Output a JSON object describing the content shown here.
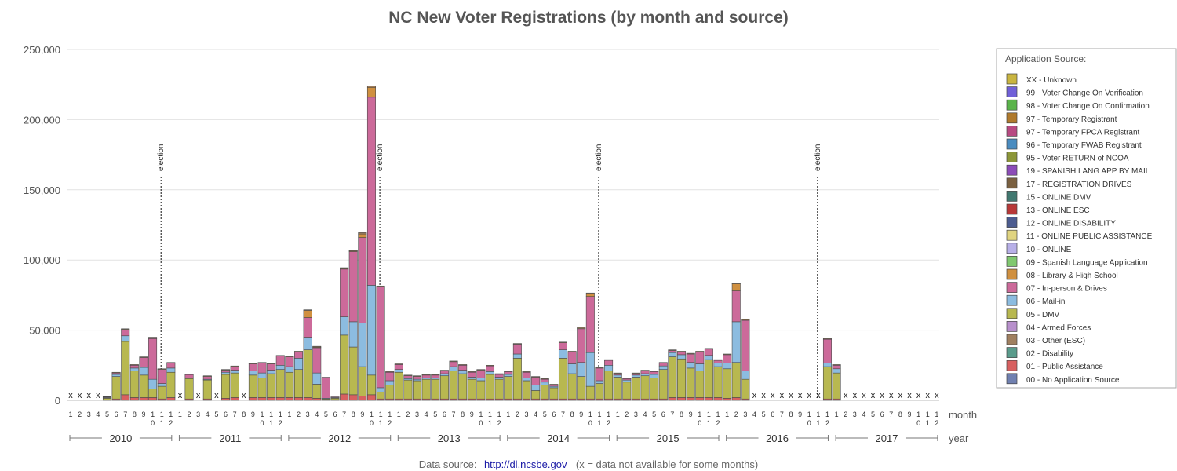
{
  "chart_data": {
    "type": "bar",
    "stacked": true,
    "title": "NC New Voter Registrations (by month and source)",
    "ylim": [
      0,
      250000
    ],
    "y_ticks": [
      "0",
      "50,000",
      "100,000",
      "150,000",
      "200,000",
      "250,000"
    ],
    "y_tick_values": [
      0,
      50000,
      100000,
      150000,
      200000,
      250000
    ],
    "x_axis_label": "month",
    "year_axis_label": "year",
    "years": [
      "2010",
      "2011",
      "2012",
      "2013",
      "2014",
      "2015",
      "2016",
      "2017"
    ],
    "month_labels": [
      [
        "1"
      ],
      [
        "2"
      ],
      [
        "3"
      ],
      [
        "4"
      ],
      [
        "5"
      ],
      [
        "6"
      ],
      [
        "7"
      ],
      [
        "8"
      ],
      [
        "9"
      ],
      [
        "1",
        "0"
      ],
      [
        "1",
        "1"
      ],
      [
        "1",
        "2"
      ]
    ],
    "unavailable_marker": "x",
    "election_label": "election",
    "election_months": [
      [
        "2010",
        11
      ],
      [
        "2012",
        11
      ],
      [
        "2014",
        11
      ],
      [
        "2016",
        11
      ]
    ],
    "legend": {
      "title": "Application Source:",
      "placement": "right",
      "entries": [
        {
          "name": "XX - Unknown",
          "color": "#c9b540"
        },
        {
          "name": "99 - Voter Change On Verification",
          "color": "#7060d8"
        },
        {
          "name": "98 - Voter Change On Confirmation",
          "color": "#5ab44a"
        },
        {
          "name": "97 - Temporary Registrant",
          "color": "#b07a2c"
        },
        {
          "name": "97 - Temporary FPCA Registrant",
          "color": "#b84a82"
        },
        {
          "name": "96 - Temporary FWAB Registrant",
          "color": "#4a8cc0"
        },
        {
          "name": "95 - Voter RETURN of NCOA",
          "color": "#8c9638"
        },
        {
          "name": "19 - SPANISH LANG APP BY MAIL",
          "color": "#8c4cb8"
        },
        {
          "name": "17 - REGISTRATION DRIVES",
          "color": "#7a6040"
        },
        {
          "name": "15 - ONLINE DMV",
          "color": "#407870"
        },
        {
          "name": "13 - ONLINE ESC",
          "color": "#b83838"
        },
        {
          "name": "12 - ONLINE DISABILITY",
          "color": "#4c5c90"
        },
        {
          "name": "11 - ONLINE PUBLIC ASSISTANCE",
          "color": "#e0d480"
        },
        {
          "name": "10 - ONLINE",
          "color": "#b8b0e8"
        },
        {
          "name": "09 - Spanish Language Application",
          "color": "#80c870"
        },
        {
          "name": "08 - Library & High School",
          "color": "#d09040"
        },
        {
          "name": "07 - In-person & Drives",
          "color": "#cc6a9a"
        },
        {
          "name": "06 - Mail-in",
          "color": "#8cbce0"
        },
        {
          "name": "05 - DMV",
          "color": "#b8b850"
        },
        {
          "name": "04 - Armed Forces",
          "color": "#b890cc"
        },
        {
          "name": "03 - Other (ESC)",
          "color": "#a08060"
        },
        {
          "name": "02 - Disability",
          "color": "#5a9c8c"
        },
        {
          "name": "01 - Public Assistance",
          "color": "#d86060"
        },
        {
          "name": "00 - No Application Source",
          "color": "#7080b0"
        }
      ]
    },
    "month_series_order": [
      "01 - Public Assistance",
      "05 - DMV",
      "06 - Mail-in",
      "07 - In-person & Drives",
      "08 - Library & High School",
      "03 - Other (ESC)"
    ],
    "months": [
      [
        "2010",
        1,
        null
      ],
      [
        "2010",
        2,
        null
      ],
      [
        "2010",
        3,
        null
      ],
      [
        "2010",
        4,
        null
      ],
      [
        "2010",
        5,
        [
          0,
          1500,
          500,
          500,
          0,
          100
        ]
      ],
      [
        "2010",
        6,
        [
          1000,
          16000,
          1500,
          1000,
          0,
          500
        ]
      ],
      [
        "2010",
        7,
        [
          4000,
          38000,
          4000,
          4500,
          0,
          500
        ]
      ],
      [
        "2010",
        8,
        [
          2000,
          19000,
          2000,
          2000,
          0,
          500
        ]
      ],
      [
        "2010",
        9,
        [
          2000,
          16000,
          5500,
          7000,
          0,
          500
        ]
      ],
      [
        "2010",
        10,
        [
          2000,
          6000,
          7000,
          29000,
          500,
          500
        ]
      ],
      [
        "2010",
        11,
        [
          1000,
          9000,
          2000,
          10000,
          0,
          500
        ]
      ],
      [
        "2010",
        12,
        [
          2000,
          18000,
          3000,
          3500,
          0,
          500
        ]
      ],
      [
        "2011",
        1,
        null
      ],
      [
        "2011",
        2,
        [
          1000,
          14500,
          500,
          2500,
          0,
          100
        ]
      ],
      [
        "2011",
        3,
        null
      ],
      [
        "2011",
        4,
        [
          1000,
          13500,
          500,
          2000,
          0,
          500
        ]
      ],
      [
        "2011",
        5,
        null
      ],
      [
        "2011",
        6,
        [
          1500,
          17000,
          1500,
          1500,
          0,
          500
        ]
      ],
      [
        "2011",
        7,
        [
          2000,
          17500,
          2000,
          2500,
          0,
          500
        ]
      ],
      [
        "2011",
        8,
        null
      ],
      [
        "2011",
        9,
        [
          2000,
          16000,
          3000,
          5000,
          0,
          500
        ]
      ],
      [
        "2011",
        10,
        [
          2000,
          14000,
          3500,
          7000,
          0,
          500
        ]
      ],
      [
        "2011",
        11,
        [
          2000,
          17000,
          2500,
          4500,
          0,
          500
        ]
      ],
      [
        "2011",
        12,
        [
          2000,
          20000,
          3000,
          6500,
          0,
          500
        ]
      ],
      [
        "2012",
        1,
        [
          2000,
          18000,
          4000,
          7000,
          0,
          500
        ]
      ],
      [
        "2012",
        2,
        [
          2000,
          20000,
          8000,
          4500,
          0,
          500
        ]
      ],
      [
        "2012",
        3,
        [
          2000,
          34000,
          9000,
          14000,
          5000,
          500
        ]
      ],
      [
        "2012",
        4,
        [
          1500,
          10000,
          8000,
          18000,
          500,
          500
        ]
      ],
      [
        "2012",
        5,
        [
          500,
          500,
          500,
          15000,
          0,
          0
        ]
      ],
      [
        "2012",
        6,
        [
          500,
          1000,
          500,
          500,
          0,
          0
        ]
      ],
      [
        "2012",
        7,
        [
          4500,
          42000,
          13000,
          34000,
          500,
          500
        ]
      ],
      [
        "2012",
        8,
        [
          4000,
          34000,
          18000,
          50000,
          500,
          500
        ]
      ],
      [
        "2012",
        9,
        [
          3000,
          21000,
          31000,
          61000,
          2500,
          1000
        ]
      ],
      [
        "2012",
        10,
        [
          4000,
          14000,
          64000,
          134000,
          7000,
          1000
        ]
      ],
      [
        "2012",
        11,
        [
          1000,
          5000,
          3000,
          72000,
          0,
          500
        ]
      ],
      [
        "2012",
        12,
        [
          1000,
          10000,
          3000,
          6000,
          0,
          500
        ]
      ],
      [
        "2013",
        1,
        [
          1000,
          19000,
          2000,
          3500,
          0,
          500
        ]
      ],
      [
        "2013",
        2,
        [
          1000,
          13500,
          1000,
          2000,
          0,
          500
        ]
      ],
      [
        "2013",
        3,
        [
          1000,
          13000,
          1000,
          2000,
          0,
          500
        ]
      ],
      [
        "2013",
        4,
        [
          1000,
          14000,
          1000,
          2000,
          0,
          500
        ]
      ],
      [
        "2013",
        5,
        [
          1000,
          14000,
          1000,
          2000,
          0,
          500
        ]
      ],
      [
        "2013",
        6,
        [
          1000,
          16500,
          1500,
          2000,
          0,
          500
        ]
      ],
      [
        "2013",
        7,
        [
          1000,
          20000,
          3000,
          3500,
          0,
          500
        ]
      ],
      [
        "2013",
        8,
        [
          1000,
          18000,
          2500,
          3500,
          0,
          500
        ]
      ],
      [
        "2013",
        9,
        [
          1000,
          14000,
          1500,
          3500,
          0,
          500
        ]
      ],
      [
        "2013",
        10,
        [
          1000,
          13000,
          2000,
          5500,
          0,
          500
        ]
      ],
      [
        "2013",
        11,
        [
          1000,
          17500,
          2000,
          4000,
          0,
          500
        ]
      ],
      [
        "2013",
        12,
        [
          1000,
          14000,
          1500,
          2000,
          0,
          500
        ]
      ],
      [
        "2014",
        1,
        [
          1000,
          16000,
          1500,
          2000,
          0,
          500
        ]
      ],
      [
        "2014",
        2,
        [
          1000,
          29000,
          3000,
          7000,
          0,
          500
        ]
      ],
      [
        "2014",
        3,
        [
          1000,
          13000,
          2000,
          4000,
          0,
          500
        ]
      ],
      [
        "2014",
        4,
        [
          1000,
          6000,
          4000,
          5500,
          0,
          500
        ]
      ],
      [
        "2014",
        5,
        [
          1000,
          10000,
          2000,
          2000,
          0,
          500
        ]
      ],
      [
        "2014",
        6,
        [
          1000,
          8000,
          1000,
          1000,
          0,
          500
        ]
      ],
      [
        "2014",
        7,
        [
          1000,
          29000,
          6000,
          5000,
          0,
          500
        ]
      ],
      [
        "2014",
        8,
        [
          1000,
          18000,
          7000,
          8500,
          0,
          500
        ]
      ],
      [
        "2014",
        9,
        [
          1000,
          16000,
          10000,
          24000,
          0,
          1000
        ]
      ],
      [
        "2014",
        10,
        [
          1000,
          9000,
          24000,
          40000,
          2000,
          500
        ]
      ],
      [
        "2014",
        11,
        [
          1000,
          11000,
          2000,
          9000,
          0,
          500
        ]
      ],
      [
        "2014",
        12,
        [
          1000,
          20000,
          4000,
          3500,
          0,
          500
        ]
      ],
      [
        "2015",
        1,
        [
          1000,
          15500,
          1500,
          1000,
          0,
          500
        ]
      ],
      [
        "2015",
        2,
        [
          1000,
          12000,
          1500,
          1000,
          0,
          500
        ]
      ],
      [
        "2015",
        3,
        [
          1000,
          15500,
          1500,
          1000,
          0,
          500
        ]
      ],
      [
        "2015",
        4,
        [
          1000,
          16500,
          1500,
          2000,
          0,
          500
        ]
      ],
      [
        "2015",
        5,
        [
          1000,
          15000,
          2500,
          2000,
          0,
          500
        ]
      ],
      [
        "2015",
        6,
        [
          1000,
          21000,
          2500,
          2000,
          0,
          500
        ]
      ],
      [
        "2015",
        7,
        [
          2000,
          29000,
          3000,
          1500,
          0,
          500
        ]
      ],
      [
        "2015",
        8,
        [
          2000,
          27500,
          3000,
          2000,
          0,
          500
        ]
      ],
      [
        "2015",
        9,
        [
          2000,
          21000,
          4000,
          6000,
          0,
          500
        ]
      ],
      [
        "2015",
        10,
        [
          2000,
          19000,
          5000,
          8500,
          0,
          500
        ]
      ],
      [
        "2015",
        11,
        [
          2000,
          27000,
          3000,
          4500,
          0,
          500
        ]
      ],
      [
        "2015",
        12,
        [
          2000,
          22000,
          2500,
          2000,
          0,
          500
        ]
      ],
      [
        "2016",
        1,
        [
          1500,
          21000,
          4000,
          6000,
          0,
          500
        ]
      ],
      [
        "2016",
        2,
        [
          2000,
          25000,
          29000,
          22000,
          5000,
          500
        ]
      ],
      [
        "2016",
        3,
        [
          1000,
          14000,
          6000,
          36000,
          500,
          500
        ]
      ],
      [
        "2016",
        4,
        null
      ],
      [
        "2016",
        5,
        null
      ],
      [
        "2016",
        6,
        null
      ],
      [
        "2016",
        7,
        null
      ],
      [
        "2016",
        8,
        null
      ],
      [
        "2016",
        9,
        null
      ],
      [
        "2016",
        10,
        null
      ],
      [
        "2016",
        11,
        null
      ],
      [
        "2016",
        12,
        [
          1000,
          23000,
          2500,
          17000,
          0,
          500
        ]
      ],
      [
        "2017",
        1,
        [
          1000,
          18500,
          3000,
          2500,
          0,
          500
        ]
      ],
      [
        "2017",
        2,
        null
      ],
      [
        "2017",
        3,
        null
      ],
      [
        "2017",
        4,
        null
      ],
      [
        "2017",
        5,
        null
      ],
      [
        "2017",
        6,
        null
      ],
      [
        "2017",
        7,
        null
      ],
      [
        "2017",
        8,
        null
      ],
      [
        "2017",
        9,
        null
      ],
      [
        "2017",
        10,
        null
      ],
      [
        "2017",
        11,
        null
      ],
      [
        "2017",
        12,
        null
      ]
    ]
  },
  "footer": {
    "source_label": "Data source:",
    "source_link": "http://dl.ncsbe.gov",
    "note": "(x = data not available for some months)"
  }
}
